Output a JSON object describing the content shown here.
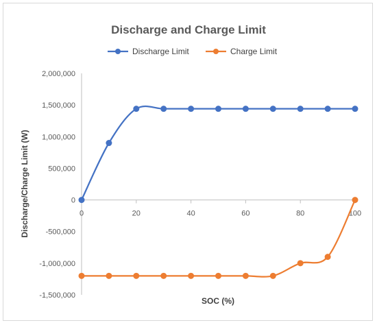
{
  "chart_data": {
    "type": "line",
    "title": "Discharge and Charge Limit",
    "xlabel": "SOC (%)",
    "ylabel": "Discharge/Charge Limit (W)",
    "x": [
      0,
      10,
      20,
      30,
      40,
      50,
      60,
      70,
      80,
      90,
      100
    ],
    "xlim": [
      0,
      100
    ],
    "ylim": [
      -1500000,
      2000000
    ],
    "x_ticks": [
      "0",
      "20",
      "40",
      "60",
      "80",
      "100"
    ],
    "y_ticks": [
      "2,000,000",
      "1,500,000",
      "1,000,000",
      "500,000",
      "0",
      "-500,000",
      "-1,000,000",
      "-1,500,000"
    ],
    "grid": false,
    "smooth": true,
    "legend_position": "top",
    "series": [
      {
        "name": "Discharge Limit",
        "color": "#4472C4",
        "values": [
          0,
          900000,
          1440000,
          1440000,
          1440000,
          1440000,
          1440000,
          1440000,
          1440000,
          1440000,
          1440000
        ]
      },
      {
        "name": "Charge Limit",
        "color": "#ED7D31",
        "values": [
          -1200000,
          -1200000,
          -1200000,
          -1200000,
          -1200000,
          -1200000,
          -1200000,
          -1200000,
          -1000000,
          -900000,
          0
        ]
      }
    ]
  }
}
